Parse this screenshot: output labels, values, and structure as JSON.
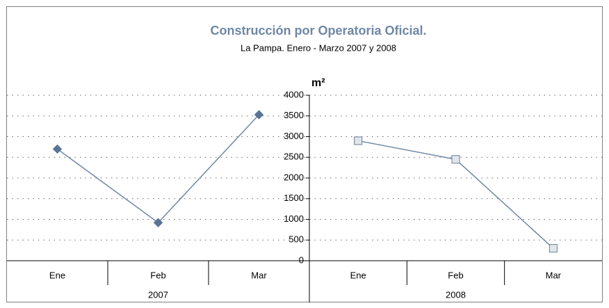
{
  "chart_data": {
    "type": "line",
    "title": "Construcción por Operatoria Oficial.",
    "subtitle": "La Pampa. Enero - Marzo 2007 y 2008",
    "ylabel": "m²",
    "ylim": [
      0,
      4000
    ],
    "yticks": [
      0,
      500,
      1000,
      1500,
      2000,
      2500,
      3000,
      3500,
      4000
    ],
    "grid": true,
    "line_color": "#6f87a5",
    "groups": [
      {
        "label": "2007",
        "categories": [
          "Ene",
          "Feb",
          "Mar"
        ],
        "values": [
          2700,
          920,
          3530
        ],
        "marker": "diamond",
        "marker_fill": "#5a7496",
        "marker_stroke": "#5a7496"
      },
      {
        "label": "2008",
        "categories": [
          "Ene",
          "Feb",
          "Mar"
        ],
        "values": [
          2900,
          2450,
          300
        ],
        "marker": "square",
        "marker_fill": "#e2e6ec",
        "marker_stroke": "#6b7d93"
      }
    ]
  }
}
